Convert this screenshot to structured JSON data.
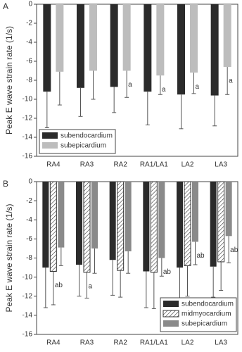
{
  "chart_data": [
    {
      "type": "bar",
      "panel_label": "A",
      "y_label": "Peak E wave strain rate (1/s)",
      "categories": [
        "RA4",
        "RA3",
        "RA2",
        "RA1/LA1",
        "LA2",
        "LA3"
      ],
      "ylim": [
        -16,
        0
      ],
      "yticks": [
        -16,
        -14,
        -12,
        -10,
        -8,
        -6,
        -4,
        -2,
        0
      ],
      "legend": "lower left",
      "series": [
        {
          "name": "subendocardium",
          "color": "#2b2b2b",
          "hatch": false,
          "values": [
            -9.2,
            -8.8,
            -8.7,
            -9.2,
            -9.5,
            -9.6
          ],
          "errors": [
            3.8,
            3.0,
            2.7,
            3.5,
            3.6,
            3.2
          ],
          "annotations": [
            null,
            null,
            null,
            null,
            null,
            null
          ]
        },
        {
          "name": "subepicardium",
          "color": "#bdbdbd",
          "hatch": false,
          "values": [
            -7.1,
            -7.0,
            -7.0,
            -7.5,
            -7.2,
            -6.6
          ],
          "errors": [
            3.5,
            3.0,
            2.8,
            2.0,
            2.2,
            2.9
          ],
          "annotations": [
            null,
            null,
            "a",
            "a",
            "a",
            "a"
          ]
        }
      ]
    },
    {
      "type": "bar",
      "panel_label": "B",
      "y_label": "Peak E wave strain rate (1/s)",
      "categories": [
        "RA4",
        "RA3",
        "RA2",
        "RA1/LA1",
        "LA2",
        "LA3"
      ],
      "ylim": [
        -16,
        0
      ],
      "yticks": [
        -16,
        -14,
        -12,
        -10,
        -8,
        -6,
        -4,
        -2,
        0
      ],
      "legend": "lower right",
      "series": [
        {
          "name": "subendocardium",
          "color": "#2b2b2b",
          "hatch": false,
          "values": [
            -9.0,
            -8.7,
            -8.2,
            -9.4,
            -9.0,
            -8.9
          ],
          "errors": [
            4.2,
            3.3,
            3.7,
            3.8,
            3.2,
            3.2
          ],
          "annotations": [
            null,
            null,
            null,
            null,
            null,
            null
          ]
        },
        {
          "name": "midmyocardium",
          "color": "#ffffff",
          "hatch": true,
          "values": [
            -9.4,
            -9.5,
            -9.3,
            -9.5,
            -8.8,
            -8.4
          ],
          "errors": [
            3.5,
            2.7,
            2.8,
            3.8,
            3.2,
            3.0
          ],
          "annotations": [
            "ab",
            "a",
            null,
            null,
            null,
            null
          ]
        },
        {
          "name": "subepicardium",
          "color": "#8a8a8a",
          "hatch": false,
          "values": [
            -6.9,
            -7.0,
            -7.3,
            -8.0,
            -6.3,
            -5.7
          ],
          "errors": [
            1.9,
            2.6,
            2.3,
            1.9,
            2.4,
            2.8
          ],
          "annotations": [
            null,
            null,
            null,
            "ab",
            "ab",
            "ab"
          ]
        }
      ]
    }
  ]
}
